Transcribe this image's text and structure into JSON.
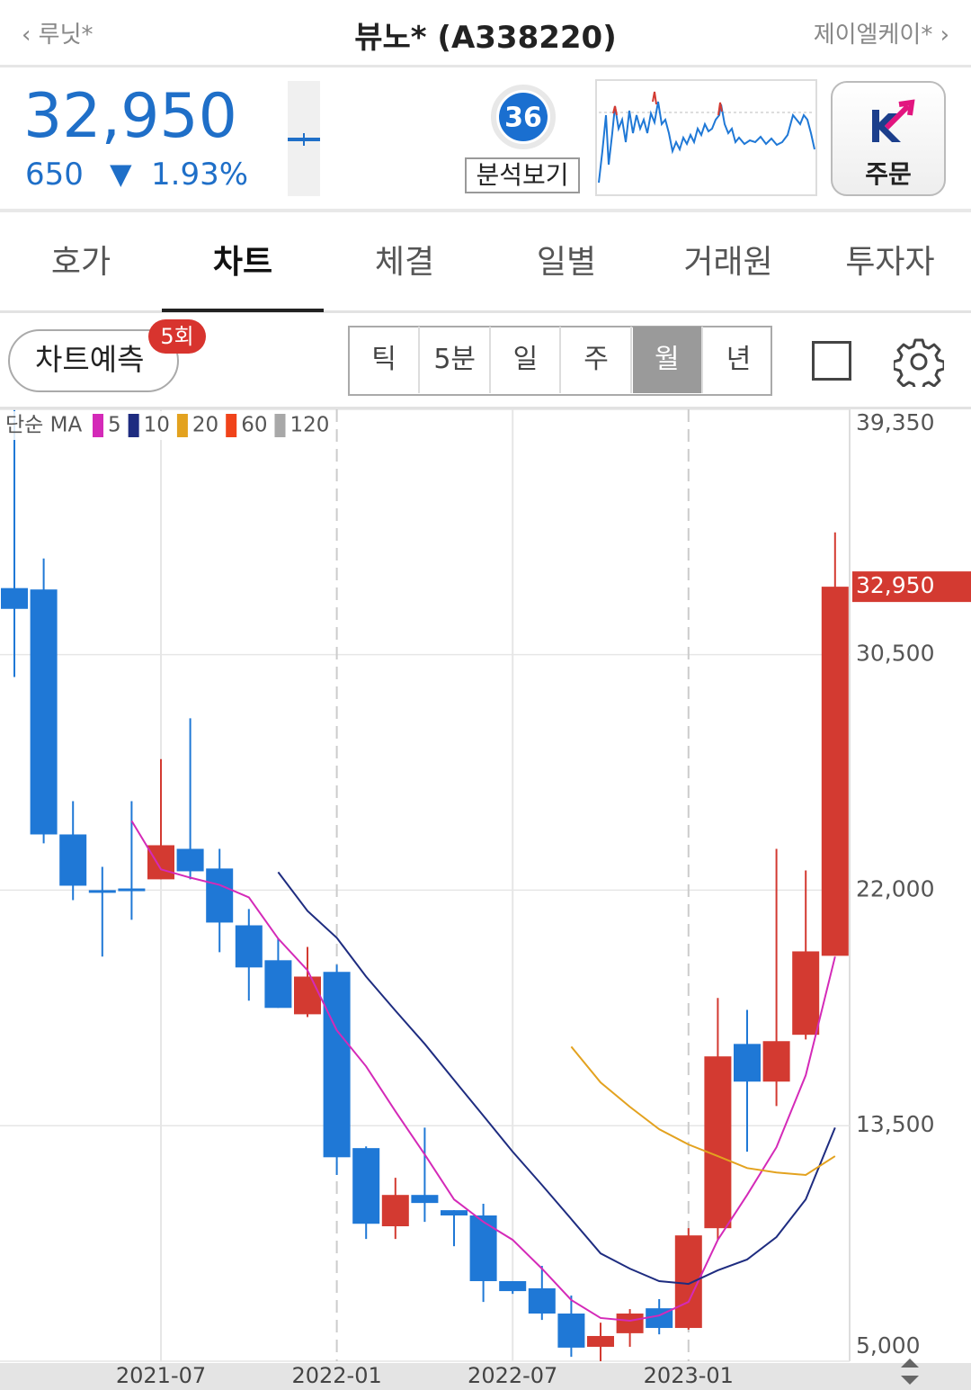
{
  "header": {
    "back": "루닛*",
    "title": "뷰노* (A338220)",
    "next": "제이엘케이*"
  },
  "quote": {
    "price": "32,950",
    "change": "650",
    "change_rate": "1.93%",
    "score": "36",
    "analysis": "분석보기",
    "order": "주문"
  },
  "tabs": [
    "호가",
    "차트",
    "체결",
    "일별",
    "거래원",
    "투자자"
  ],
  "toolbar": {
    "predict": "차트예측",
    "predict_count": "5회",
    "periods": [
      "틱",
      "5분",
      "일",
      "주",
      "월",
      "년"
    ]
  },
  "chart_data": {
    "type": "candlestick",
    "legend_title": "단순 MA",
    "categories": [
      null,
      null,
      null,
      null,
      null,
      "2021-07",
      null,
      null,
      null,
      null,
      null,
      "2022-01",
      null,
      null,
      null,
      null,
      null,
      "2022-07",
      null,
      null,
      null,
      null,
      null,
      "2023-01",
      null,
      null,
      null,
      null,
      null
    ],
    "open": [
      32900,
      32850,
      24010,
      22000,
      22060,
      22390,
      23490,
      22780,
      20730,
      19470,
      17520,
      19050,
      12690,
      9870,
      11000,
      10450,
      10260,
      7890,
      7630,
      6720,
      5520,
      6010,
      6910,
      6200,
      9800,
      16450,
      15090,
      16780,
      19630
    ],
    "high": [
      39320,
      33970,
      25210,
      22840,
      25210,
      26730,
      28200,
      23490,
      21320,
      20250,
      19950,
      19310,
      12750,
      11620,
      13430,
      10450,
      10680,
      7890,
      8440,
      7370,
      6390,
      6880,
      7240,
      9800,
      18110,
      17680,
      23490,
      22710,
      34910
    ],
    "low": [
      29690,
      23690,
      21640,
      19600,
      20930,
      22390,
      22390,
      19760,
      18010,
      17750,
      17420,
      11720,
      9410,
      9410,
      10030,
      9150,
      7140,
      7430,
      6490,
      5160,
      5000,
      5520,
      5970,
      6140,
      9380,
      12560,
      14210,
      16610,
      19630
    ],
    "close": [
      32150,
      24010,
      22160,
      21950,
      21980,
      23620,
      22680,
      20830,
      19210,
      17750,
      18880,
      12360,
      9960,
      11000,
      10710,
      10260,
      7890,
      7530,
      6720,
      5490,
      5910,
      6720,
      6200,
      9540,
      16000,
      15090,
      16550,
      19790,
      32950
    ],
    "up_color": "#d33a31",
    "down_color": "#1f78d6",
    "series": [
      {
        "name": "5",
        "color": "#d42ab8",
        "values": [
          null,
          null,
          null,
          null,
          24500,
          22750,
          22450,
          22190,
          21740,
          20250,
          19110,
          16940,
          15640,
          14020,
          12460,
          10840,
          10030,
          9380,
          8340,
          7210,
          6560,
          6460,
          6650,
          7140,
          9380,
          11000,
          12720,
          15320,
          19600
        ]
      },
      {
        "name": "10",
        "color": "#1e2c80",
        "values": [
          null,
          null,
          null,
          null,
          null,
          null,
          null,
          null,
          null,
          22650,
          21250,
          20280,
          18880,
          17650,
          16450,
          15150,
          13860,
          12560,
          11360,
          10130,
          8890,
          8340,
          7890,
          7790,
          8280,
          8670,
          9480,
          10840,
          13430
        ]
      },
      {
        "name": "20",
        "color": "#e3a21f",
        "values": [
          null,
          null,
          null,
          null,
          null,
          null,
          null,
          null,
          null,
          null,
          null,
          null,
          null,
          null,
          null,
          null,
          null,
          null,
          null,
          16350,
          15060,
          14180,
          13370,
          12820,
          12400,
          11970,
          11810,
          11720,
          12400
        ]
      },
      {
        "name": "60",
        "color": "#f0431a",
        "values": [
          null,
          null,
          null,
          null,
          null,
          null,
          null,
          null,
          null,
          null,
          null,
          null,
          null,
          null,
          null,
          null,
          null,
          null,
          null,
          null,
          null,
          null,
          null,
          null,
          null,
          null,
          null,
          null,
          null
        ]
      },
      {
        "name": "120",
        "color": "#a8a8a8",
        "values": [
          null,
          null,
          null,
          null,
          null,
          null,
          null,
          null,
          null,
          null,
          null,
          null,
          null,
          null,
          null,
          null,
          null,
          null,
          null,
          null,
          null,
          null,
          null,
          null,
          null,
          null,
          null,
          null,
          null
        ]
      }
    ],
    "ylim": [
      5000,
      39350
    ],
    "yticks": [
      {
        "value": 39350,
        "label": "39,350"
      },
      {
        "value": 30500,
        "label": "30,500"
      },
      {
        "value": 22000,
        "label": "22,000"
      },
      {
        "value": 13500,
        "label": "13,500"
      },
      {
        "value": 5000,
        "label": "5,000"
      }
    ],
    "last_price": {
      "value": 32950,
      "label": "32,950"
    },
    "grid": true
  }
}
